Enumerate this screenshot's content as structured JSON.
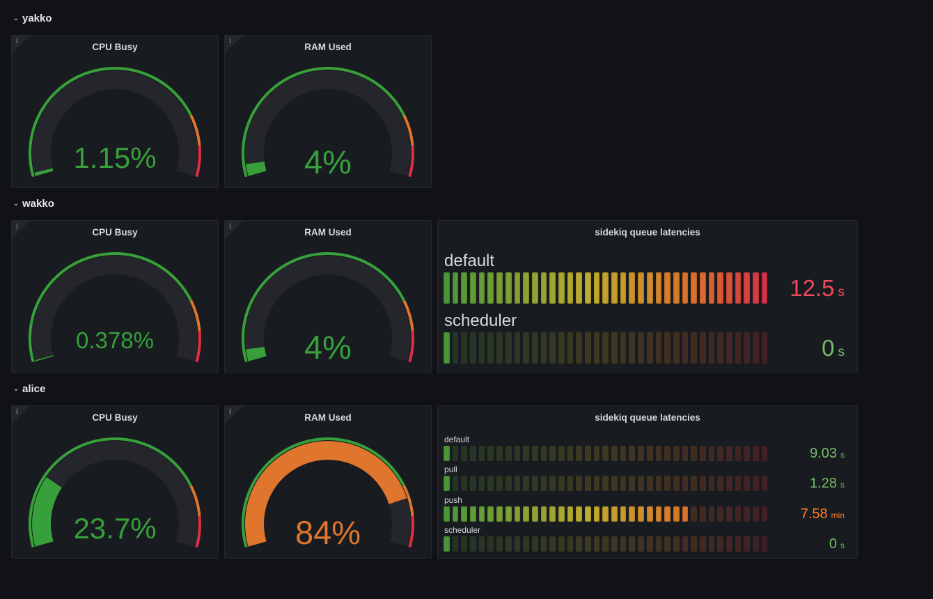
{
  "rows": [
    {
      "title": "yakko",
      "gauges": [
        {
          "title": "CPU Busy",
          "value": 1.15,
          "display": "1.15%",
          "color": "#37a03a"
        },
        {
          "title": "RAM Used",
          "value": 4,
          "display": "4%",
          "color": "#37a03a"
        }
      ],
      "bargauge": null
    },
    {
      "title": "wakko",
      "gauges": [
        {
          "title": "CPU Busy",
          "value": 0.378,
          "display": "0.378%",
          "color": "#37a03a"
        },
        {
          "title": "RAM Used",
          "value": 4,
          "display": "4%",
          "color": "#37a03a"
        }
      ],
      "bargauge": {
        "title": "sidekiq queue latencies",
        "items": [
          {
            "label": "default",
            "fraction": 1.0,
            "value": "12.5",
            "unit": "s",
            "color": "#f2495c"
          },
          {
            "label": "scheduler",
            "fraction": 0.0,
            "value": "0",
            "unit": "s",
            "color": "#73bf69"
          }
        ]
      }
    },
    {
      "title": "alice",
      "gauges": [
        {
          "title": "CPU Busy",
          "value": 23.7,
          "display": "23.7%",
          "color": "#37a03a"
        },
        {
          "title": "RAM Used",
          "value": 84,
          "display": "84%",
          "color": "#e0752d"
        }
      ],
      "bargauge": {
        "title": "sidekiq queue latencies",
        "items": [
          {
            "label": "default",
            "fraction": 0.0,
            "value": "9.03",
            "unit": "s",
            "color": "#73bf69"
          },
          {
            "label": "pull",
            "fraction": 0.0,
            "value": "1.28",
            "unit": "s",
            "color": "#73bf69"
          },
          {
            "label": "push",
            "fraction": 0.76,
            "value": "7.58",
            "unit": "min",
            "color": "#ff7f2a"
          },
          {
            "label": "scheduler",
            "fraction": 0.0,
            "value": "0",
            "unit": "s",
            "color": "#73bf69"
          }
        ]
      }
    }
  ],
  "info_icon": "info-icon",
  "collapse_icon": "chevron-down-icon",
  "threshold_colors": {
    "green": "#37a03a",
    "orange": "#e0752d",
    "red": "#e02f44"
  },
  "track_color": "#25262b"
}
